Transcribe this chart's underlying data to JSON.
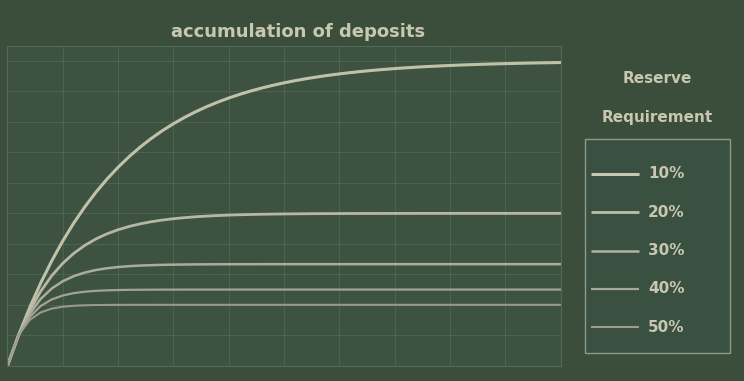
{
  "title": "accumulation of deposits",
  "background_color": "#3b4e3b",
  "plot_bg_color": "#3d5240",
  "grid_color": "#506b55",
  "text_color": "#c8c8b0",
  "legend_title_line1": "Reserve",
  "legend_title_line2": "Requirement",
  "reserve_rates": [
    0.1,
    0.2,
    0.3,
    0.4,
    0.5
  ],
  "reserve_labels": [
    "10%",
    "20%",
    "30%",
    "40%",
    "50%"
  ],
  "line_colors": [
    "#c8c8b0",
    "#bdbdaa",
    "#b2b2a0",
    "#a8a898",
    "#9e9e90"
  ],
  "line_widths": [
    2.2,
    2.0,
    1.8,
    1.6,
    1.5
  ],
  "n_steps": 50,
  "initial_deposit": 1000,
  "legend_bg": "#3a5040",
  "legend_edge": "#8a9e8a",
  "figwidth": 7.44,
  "figheight": 3.81,
  "dpi": 100
}
